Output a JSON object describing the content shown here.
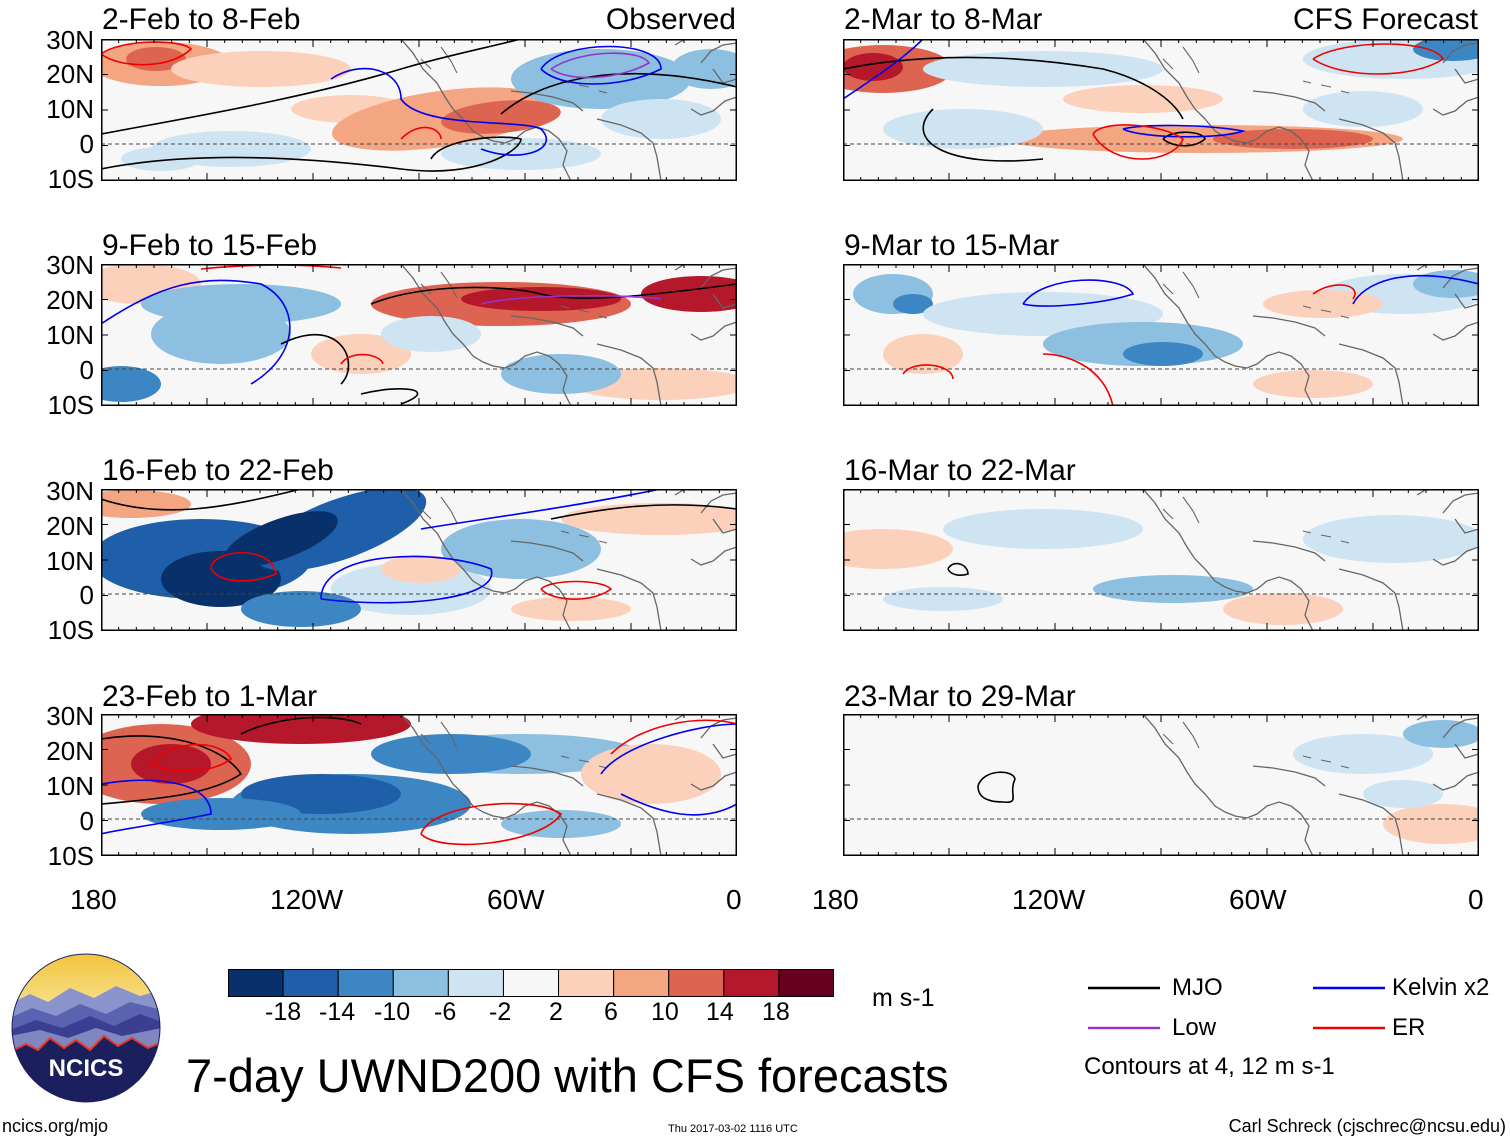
{
  "figure": {
    "title": "7-day UWND200 with CFS forecasts",
    "observed_label": "Observed",
    "forecast_label": "CFS Forecast",
    "units": "m s-1",
    "contour_note": "Contours at 4, 12 m s-1",
    "website": "ncics.org/mjo",
    "timestamp": "Thu 2017-03-02 1116 UTC",
    "author": "Carl Schreck (cjschrec@ncsu.edu)",
    "logo_text": "NCICS"
  },
  "panels": {
    "observed": [
      {
        "period": "2-Feb to 8-Feb"
      },
      {
        "period": "9-Feb to 15-Feb"
      },
      {
        "period": "16-Feb to 22-Feb"
      },
      {
        "period": "23-Feb to 1-Mar"
      }
    ],
    "forecast": [
      {
        "period": "2-Mar to 8-Mar"
      },
      {
        "period": "9-Mar to 15-Mar"
      },
      {
        "period": "16-Mar to 22-Mar"
      },
      {
        "period": "23-Mar to 29-Mar"
      }
    ]
  },
  "axes": {
    "lat_labels": [
      "30N",
      "20N",
      "10N",
      "0",
      "10S"
    ],
    "lon_labels": [
      "180",
      "120W",
      "60W",
      "0"
    ]
  },
  "colorbar": {
    "labels": [
      "-18",
      "-14",
      "-10",
      "-6",
      "-2",
      "2",
      "6",
      "10",
      "14",
      "18"
    ],
    "colors": [
      "#08306b",
      "#1f5ea8",
      "#3b86c3",
      "#8cbfe0",
      "#cfe4f2",
      "#f7f7f7",
      "#fbd1bc",
      "#f4a582",
      "#dd6450",
      "#b5182b",
      "#67001f"
    ]
  },
  "legend": {
    "items": [
      {
        "label": "MJO",
        "color": "#000000"
      },
      {
        "label": "Kelvin x2",
        "color": "#0000ee"
      },
      {
        "label": "Low",
        "color": "#9932cc"
      },
      {
        "label": "ER",
        "color": "#ee0000"
      }
    ]
  }
}
